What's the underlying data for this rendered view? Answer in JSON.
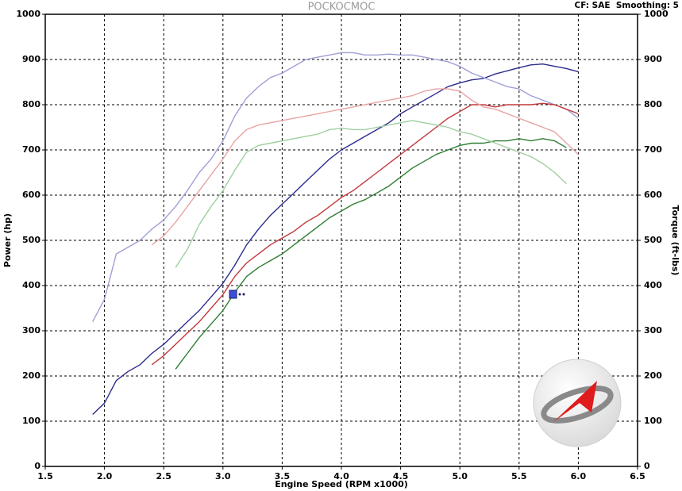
{
  "chart_data": {
    "type": "line",
    "title": "POCKOCMOC",
    "annotation": "CF: SAE  Smoothing: 5",
    "x_label": "Engine Speed (RPM x1000)",
    "y_label": "Power (hp)",
    "y2_label": "Torque (ft-lbs)",
    "grid": true,
    "xlim": [
      1.5,
      6.5
    ],
    "xticks": [
      1.5,
      {
        "value": 2,
        "label": "2.0"
      },
      2.5,
      {
        "value": 3,
        "label": "3.0"
      },
      3.5,
      {
        "value": 4,
        "label": "4.0"
      },
      4.5,
      {
        "value": 5,
        "label": "5.0"
      },
      5.5,
      {
        "value": 6,
        "label": "6.0"
      },
      6.5
    ],
    "ylim": [
      0,
      1000
    ],
    "yticks": [
      0,
      100,
      200,
      300,
      400,
      500,
      600,
      700,
      800,
      900,
      1000
    ],
    "y2lim": [
      0,
      1000
    ],
    "y2ticks": [
      0,
      100,
      200,
      300,
      400,
      500,
      600,
      700,
      800,
      900,
      1000
    ],
    "x": [
      1.9,
      2.0,
      2.1,
      2.2,
      2.3,
      2.4,
      2.5,
      2.6,
      2.7,
      2.8,
      2.9,
      3.0,
      3.1,
      3.2,
      3.3,
      3.4,
      3.5,
      3.6,
      3.7,
      3.8,
      3.9,
      4.0,
      4.1,
      4.2,
      4.3,
      4.4,
      4.5,
      4.6,
      4.7,
      4.8,
      4.9,
      5.0,
      5.1,
      5.2,
      5.3,
      5.4,
      5.5,
      5.6,
      5.7,
      5.8,
      5.9,
      6.0
    ],
    "series": [
      {
        "color": "#2b2b8f",
        "values": [
          115,
          140,
          190,
          210,
          225,
          250,
          270,
          295,
          320,
          345,
          375,
          405,
          445,
          490,
          525,
          555,
          580,
          605,
          630,
          655,
          680,
          700,
          715,
          730,
          745,
          760,
          780,
          795,
          810,
          825,
          840,
          848,
          855,
          858,
          868,
          875,
          882,
          888,
          890,
          885,
          880,
          873
        ]
      },
      {
        "color": "#a09fd6",
        "axis": "y2",
        "values": [
          320,
          370,
          470,
          485,
          500,
          525,
          545,
          575,
          610,
          650,
          680,
          720,
          775,
          815,
          840,
          860,
          870,
          885,
          900,
          905,
          910,
          915,
          915,
          910,
          910,
          912,
          910,
          910,
          905,
          900,
          895,
          885,
          870,
          860,
          850,
          840,
          835,
          820,
          810,
          800,
          790,
          770
        ]
      },
      {
        "color": "#c2393b",
        "values": [
          null,
          null,
          null,
          null,
          null,
          225,
          245,
          270,
          295,
          320,
          350,
          380,
          420,
          450,
          470,
          490,
          505,
          520,
          540,
          555,
          575,
          595,
          610,
          630,
          650,
          670,
          690,
          710,
          730,
          750,
          770,
          785,
          800,
          800,
          795,
          800,
          800,
          800,
          803,
          800,
          790,
          780
        ]
      },
      {
        "color": "#e8a3a3",
        "axis": "y2",
        "values": [
          null,
          null,
          null,
          null,
          null,
          490,
          510,
          540,
          575,
          610,
          645,
          680,
          720,
          745,
          755,
          760,
          765,
          770,
          775,
          780,
          785,
          790,
          795,
          800,
          805,
          810,
          815,
          820,
          830,
          835,
          835,
          830,
          810,
          795,
          790,
          780,
          770,
          760,
          750,
          740,
          715,
          690
        ]
      },
      {
        "color": "#2e7d32",
        "values": [
          null,
          null,
          null,
          null,
          null,
          null,
          null,
          215,
          250,
          285,
          315,
          345,
          385,
          420,
          440,
          455,
          470,
          490,
          510,
          530,
          550,
          565,
          580,
          590,
          605,
          620,
          640,
          660,
          675,
          690,
          700,
          710,
          715,
          715,
          720,
          720,
          725,
          720,
          725,
          720,
          705,
          null
        ]
      },
      {
        "color": "#9fcf9f",
        "axis": "y2",
        "values": [
          null,
          null,
          null,
          null,
          null,
          null,
          null,
          440,
          480,
          535,
          575,
          610,
          655,
          695,
          710,
          715,
          720,
          725,
          730,
          735,
          745,
          748,
          745,
          745,
          750,
          755,
          760,
          765,
          760,
          755,
          750,
          740,
          735,
          725,
          715,
          705,
          695,
          685,
          670,
          650,
          625,
          null
        ]
      }
    ]
  }
}
